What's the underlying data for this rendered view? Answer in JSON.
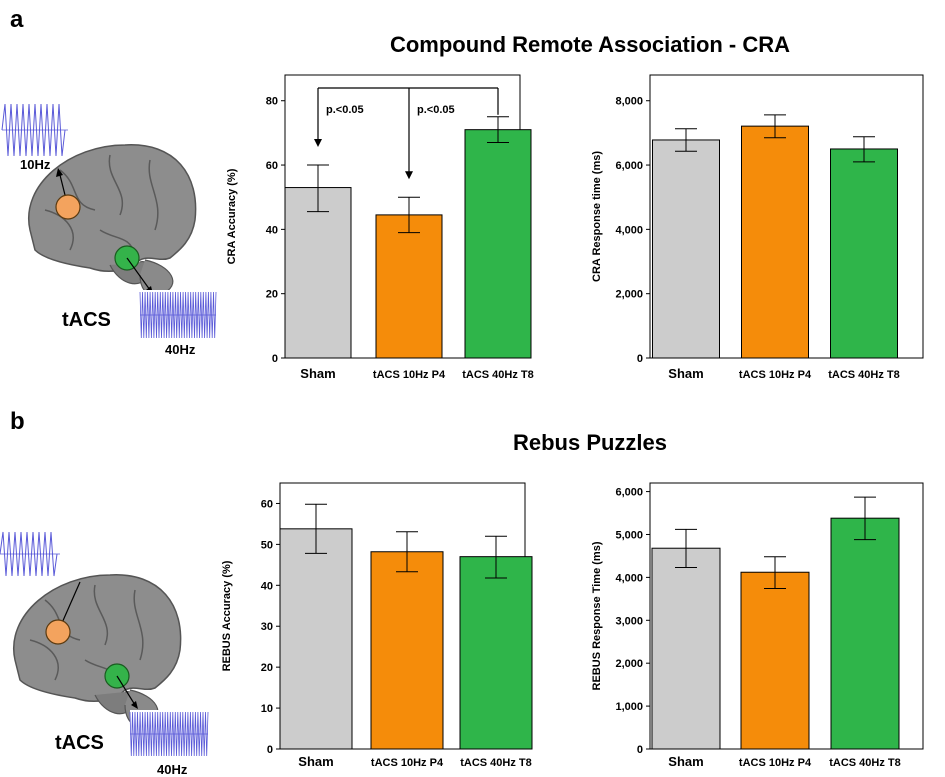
{
  "panels": [
    {
      "letter": "a",
      "title": "Compound Remote Association - CRA",
      "tacs_label": "tACS",
      "freq_top": "10Hz",
      "freq_bottom": "40Hz"
    },
    {
      "letter": "b",
      "title": "Rebus Puzzles",
      "tacs_label": "tACS",
      "freq_bottom": "40Hz"
    }
  ],
  "colors": {
    "sham": "#cccccc",
    "tacs10": "#f58c0a",
    "tacs40": "#2fb54a",
    "error_bar": "#000000"
  },
  "chart_data": [
    {
      "type": "bar",
      "ylabel": "CRA Accuracy (%)",
      "categories": [
        "Sham",
        "tACS 10Hz  P4",
        "tACS 40Hz T8"
      ],
      "values": [
        53,
        44.5,
        71
      ],
      "errors_low": [
        45.5,
        39,
        67
      ],
      "errors_high": [
        60,
        50,
        75
      ],
      "ylim": [
        0,
        88
      ],
      "yticks": [
        0,
        20,
        40,
        60,
        80
      ],
      "ytick_labels": [
        "0",
        "20",
        "40",
        "60",
        "80"
      ],
      "annotations": [
        "p.<0.05",
        "p.<0.05"
      ]
    },
    {
      "type": "bar",
      "ylabel": "CRA Response time (ms)",
      "categories": [
        "Sham",
        "tACS 10Hz  P4",
        "tACS 40Hz T8"
      ],
      "values": [
        6780,
        7210,
        6500
      ],
      "errors_low": [
        6430,
        6850,
        6100
      ],
      "errors_high": [
        7130,
        7560,
        6880
      ],
      "ylim": [
        0,
        8800
      ],
      "yticks": [
        0,
        2000,
        4000,
        6000,
        8000
      ],
      "ytick_labels": [
        "0",
        "2,000",
        "4,000",
        "6,000",
        "8,000"
      ]
    },
    {
      "type": "bar",
      "ylabel": "REBUS Accuracy (%)",
      "categories": [
        "Sham",
        "tACS 10Hz  P4",
        "tACS 40Hz T8"
      ],
      "values": [
        53.8,
        48.2,
        47
      ],
      "errors_low": [
        47.8,
        43.3,
        41.8
      ],
      "errors_high": [
        59.8,
        53.1,
        52
      ],
      "ylim": [
        0,
        65
      ],
      "yticks": [
        0,
        10,
        20,
        30,
        40,
        50,
        60
      ],
      "ytick_labels": [
        "0",
        "10",
        "20",
        "30",
        "40",
        "50",
        "60"
      ]
    },
    {
      "type": "bar",
      "ylabel": "REBUS Response Time (ms)",
      "categories": [
        "Sham",
        "tACS 10Hz  P4",
        "tACS 40Hz T8"
      ],
      "values": [
        4680,
        4120,
        5380
      ],
      "errors_low": [
        4230,
        3740,
        4880
      ],
      "errors_high": [
        5120,
        4480,
        5870
      ],
      "ylim": [
        0,
        6200
      ],
      "yticks": [
        0,
        1000,
        2000,
        3000,
        4000,
        5000,
        6000
      ],
      "ytick_labels": [
        "0",
        "1,000",
        "2,000",
        "3,000",
        "4,000",
        "5,000",
        "6,000"
      ]
    }
  ]
}
